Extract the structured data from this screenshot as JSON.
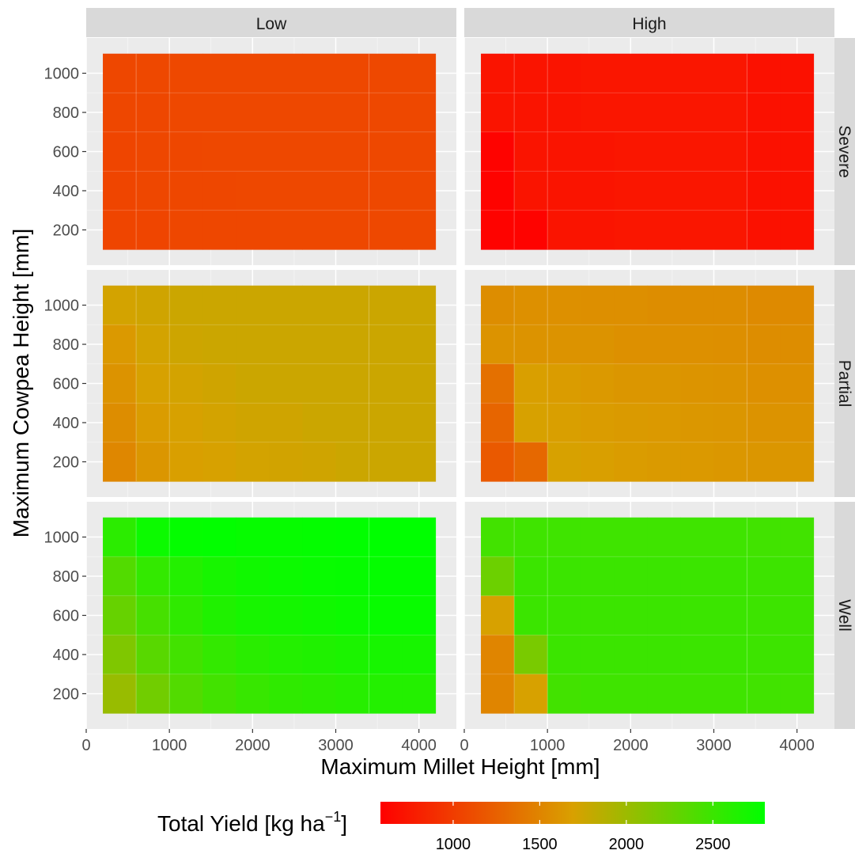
{
  "chart_data": {
    "type": "heatmap",
    "xlabel": "Maximum Millet Height [mm]",
    "ylabel": "Maximum Cowpea Height [mm]",
    "col_facets": [
      "Low",
      "High"
    ],
    "row_facets": [
      "Severe",
      "Partial",
      "Well"
    ],
    "x_ticks": [
      0,
      1000,
      2000,
      3000,
      4000
    ],
    "y_ticks": [
      200,
      400,
      600,
      800,
      1000
    ],
    "xlim": [
      0,
      4450
    ],
    "ylim": [
      20,
      1180
    ],
    "x_edges": [
      200,
      600,
      1000,
      1400,
      1800,
      2200,
      2600,
      3000,
      3400,
      3800,
      4200
    ],
    "y_edges": [
      100,
      300,
      500,
      700,
      900,
      1100
    ],
    "grid": true,
    "legend": {
      "title": "Total Yield [kg ha",
      "title_sup": "−1",
      "title_end": "]",
      "position": "bottom",
      "min": 580,
      "max": 2800,
      "ticks": [
        1000,
        1500,
        2000,
        2500
      ],
      "colors": [
        "#ff0000",
        "#d9a000",
        "#00ff00"
      ]
    },
    "panels": [
      {
        "col": "Low",
        "row": "Severe",
        "values": [
          [
            1070,
            1080,
            1080,
            1080,
            1080,
            1080,
            1080,
            1080,
            1080,
            1080
          ],
          [
            1070,
            1070,
            1080,
            1080,
            1080,
            1080,
            1080,
            1080,
            1080,
            1080
          ],
          [
            1060,
            1070,
            1070,
            1080,
            1080,
            1080,
            1080,
            1080,
            1080,
            1080
          ],
          [
            1060,
            1070,
            1070,
            1070,
            1080,
            1080,
            1080,
            1080,
            1080,
            1080
          ],
          [
            1060,
            1060,
            1070,
            1070,
            1070,
            1080,
            1080,
            1080,
            1080,
            1080
          ]
        ]
      },
      {
        "col": "High",
        "row": "Severe",
        "values": [
          [
            720,
            720,
            720,
            730,
            730,
            730,
            730,
            730,
            700,
            700
          ],
          [
            720,
            720,
            720,
            730,
            730,
            730,
            730,
            730,
            700,
            700
          ],
          [
            600,
            720,
            720,
            720,
            730,
            730,
            730,
            730,
            700,
            700
          ],
          [
            600,
            720,
            720,
            720,
            730,
            730,
            730,
            730,
            700,
            700
          ],
          [
            600,
            600,
            720,
            720,
            730,
            730,
            730,
            730,
            700,
            700
          ]
        ]
      },
      {
        "col": "Low",
        "row": "Partial",
        "values": [
          [
            1720,
            1740,
            1760,
            1760,
            1760,
            1760,
            1760,
            1760,
            1760,
            1760
          ],
          [
            1640,
            1720,
            1750,
            1760,
            1760,
            1760,
            1760,
            1760,
            1760,
            1760
          ],
          [
            1600,
            1700,
            1720,
            1740,
            1760,
            1760,
            1760,
            1760,
            1760,
            1760
          ],
          [
            1560,
            1660,
            1700,
            1720,
            1740,
            1740,
            1760,
            1760,
            1760,
            1760
          ],
          [
            1520,
            1620,
            1680,
            1700,
            1720,
            1730,
            1740,
            1760,
            1760,
            1760
          ]
        ]
      },
      {
        "col": "High",
        "row": "Partial",
        "values": [
          [
            1560,
            1580,
            1580,
            1570,
            1570,
            1560,
            1560,
            1560,
            1540,
            1540
          ],
          [
            1600,
            1600,
            1600,
            1600,
            1580,
            1580,
            1580,
            1570,
            1560,
            1560
          ],
          [
            1360,
            1680,
            1660,
            1640,
            1620,
            1620,
            1610,
            1600,
            1580,
            1580
          ],
          [
            1280,
            1700,
            1680,
            1660,
            1650,
            1640,
            1630,
            1620,
            1600,
            1600
          ],
          [
            1200,
            1300,
            1700,
            1680,
            1660,
            1650,
            1640,
            1630,
            1620,
            1620
          ]
        ]
      },
      {
        "col": "Low",
        "row": "Well",
        "values": [
          [
            2580,
            2740,
            2780,
            2790,
            2770,
            2770,
            2780,
            2790,
            2800,
            2800
          ],
          [
            2380,
            2540,
            2620,
            2680,
            2720,
            2740,
            2760,
            2770,
            2780,
            2780
          ],
          [
            2280,
            2440,
            2560,
            2640,
            2680,
            2700,
            2720,
            2740,
            2760,
            2760
          ],
          [
            2150,
            2350,
            2460,
            2540,
            2590,
            2620,
            2640,
            2660,
            2680,
            2680
          ],
          [
            2020,
            2220,
            2380,
            2460,
            2520,
            2560,
            2580,
            2600,
            2620,
            2620
          ]
        ]
      },
      {
        "col": "High",
        "row": "Well",
        "values": [
          [
            2460,
            2480,
            2480,
            2480,
            2480,
            2480,
            2480,
            2480,
            2470,
            2470
          ],
          [
            2250,
            2500,
            2500,
            2500,
            2500,
            2500,
            2500,
            2500,
            2490,
            2490
          ],
          [
            1700,
            2500,
            2500,
            2500,
            2500,
            2500,
            2500,
            2500,
            2490,
            2490
          ],
          [
            1500,
            2180,
            2500,
            2500,
            2500,
            2500,
            2500,
            2500,
            2490,
            2490
          ],
          [
            1500,
            1700,
            2460,
            2480,
            2480,
            2480,
            2480,
            2480,
            2470,
            2470
          ]
        ]
      }
    ]
  }
}
